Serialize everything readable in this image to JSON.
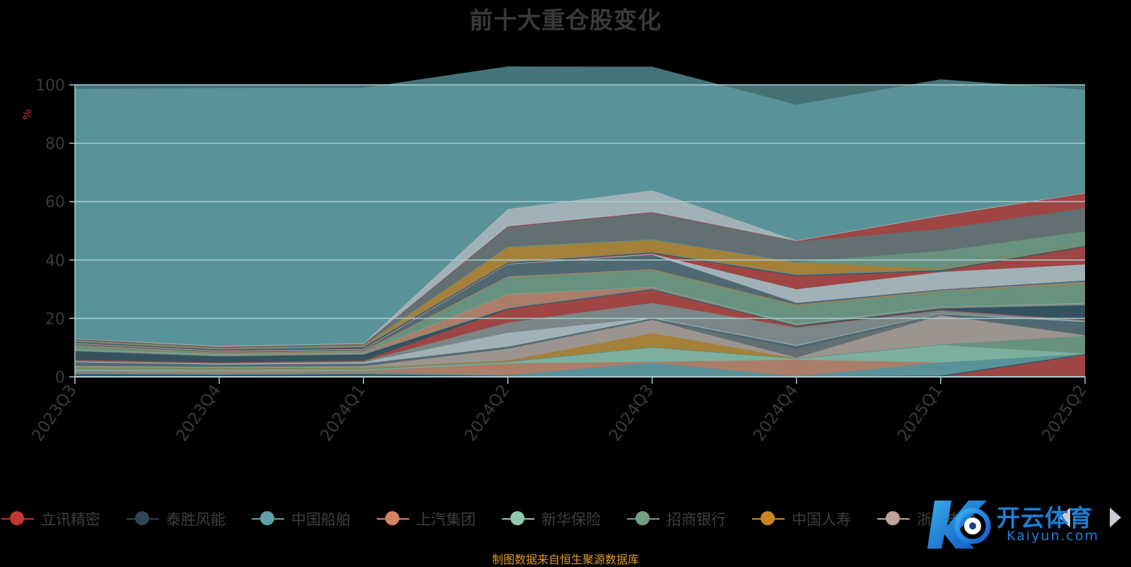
{
  "chart_data": {
    "type": "area",
    "title": "前十大重仓股变化",
    "ylabel": "%",
    "ylim": [
      0,
      100
    ],
    "y_ticks": [
      "0",
      "20",
      "40",
      "60",
      "80",
      "100"
    ],
    "stacked": true,
    "grid": true,
    "categories": [
      "2023Q3",
      "2023Q4",
      "2024Q1",
      "2024Q2",
      "2024Q3",
      "2024Q4",
      "2025Q1",
      "2025Q2"
    ],
    "series": [
      {
        "name": "立讯精密",
        "color": "#c23531",
        "values": [
          0.4,
          0.3,
          0.5,
          0,
          0,
          0,
          0,
          7.5
        ]
      },
      {
        "name": "泰胜风能",
        "color": "#2f4554",
        "values": [
          0.5,
          0.4,
          0.4,
          0.3,
          0.2,
          0.2,
          0.4,
          0.3
        ]
      },
      {
        "name": "中国船舶",
        "color": "#61a0a8",
        "values": [
          0.6,
          0.5,
          0.6,
          0.3,
          4.6,
          0,
          4.5,
          0
        ]
      },
      {
        "name": "上汽集团",
        "color": "#d48265",
        "values": [
          0.5,
          0.8,
          0.6,
          4.0,
          0.3,
          5.6,
          0,
          0
        ]
      },
      {
        "name": "新华保险",
        "color": "#91c7ae",
        "values": [
          0.5,
          0.4,
          0.4,
          0.4,
          4.9,
          0.3,
          6.0,
          0.2
        ]
      },
      {
        "name": "招商银行",
        "color": "#749f83",
        "values": [
          0.5,
          0.4,
          0.3,
          0.3,
          0.2,
          0.2,
          0.2,
          6.0
        ]
      },
      {
        "name": "中国人寿",
        "color": "#ca8622",
        "values": [
          0.3,
          0.3,
          0.3,
          0.3,
          4.7,
          0,
          0,
          0
        ]
      },
      {
        "name": "浙能电力",
        "color": "#bda29a",
        "values": [
          0.4,
          0.3,
          0.5,
          4.0,
          4.6,
          0.3,
          10.0,
          0.2
        ]
      },
      {
        "name": "",
        "color": "#6e7074",
        "values": [
          0.3,
          0.3,
          0.4,
          0.3,
          0.2,
          2.9,
          0.2,
          0.3
        ]
      },
      {
        "name": "",
        "color": "#546570",
        "values": [
          1.0,
          0.5,
          0.5,
          0.4,
          0.3,
          1.1,
          0.2,
          4.3
        ]
      },
      {
        "name": "",
        "color": "#c4ccd3",
        "values": [
          0.2,
          0.3,
          0.5,
          4.8,
          0.3,
          0.3,
          0.2,
          0.3
        ]
      },
      {
        "name": "",
        "color": "#8f8f8f",
        "values": [
          0.3,
          0.2,
          0.3,
          3.5,
          5.0,
          6.0,
          1.0,
          0.2
        ]
      },
      {
        "name": "",
        "color": "#c23531",
        "values": [
          0.3,
          0.3,
          0.3,
          4.5,
          4.5,
          0.3,
          0.2,
          0.2
        ]
      },
      {
        "name": "",
        "color": "#2f4554",
        "values": [
          3.0,
          2.0,
          2.0,
          0.3,
          0.2,
          0.3,
          0.5,
          5.0
        ]
      },
      {
        "name": "",
        "color": "#61a0a8",
        "values": [
          0.2,
          0.2,
          0.2,
          0.2,
          0.3,
          0.2,
          0.2,
          0.3
        ]
      },
      {
        "name": "",
        "color": "#d48265",
        "values": [
          0.2,
          0.2,
          0.3,
          4.6,
          0.3,
          0.2,
          0.3,
          0.2
        ]
      },
      {
        "name": "",
        "color": "#91c7ae",
        "values": [
          0.2,
          0.3,
          0.2,
          0.2,
          0.2,
          0.3,
          0.2,
          0.3
        ]
      },
      {
        "name": "",
        "color": "#749f83",
        "values": [
          1.0,
          0.2,
          0.2,
          5.5,
          5.6,
          6.0,
          5.0,
          6.5
        ]
      },
      {
        "name": "",
        "color": "#ca8622",
        "values": [
          0.2,
          0.2,
          0.2,
          0.2,
          0.2,
          0.2,
          0.2,
          0.3
        ]
      },
      {
        "name": "",
        "color": "#bda29a",
        "values": [
          0.2,
          0.2,
          0.2,
          0.2,
          0.2,
          0.2,
          0.2,
          0.3
        ]
      },
      {
        "name": "",
        "color": "#6e7074",
        "values": [
          0.3,
          0.2,
          0.2,
          0.2,
          0.2,
          0.3,
          0.2,
          0.3
        ]
      },
      {
        "name": "",
        "color": "#546570",
        "values": [
          0.2,
          0.2,
          0.2,
          4.0,
          4.8,
          0.4,
          0.2,
          0.3
        ]
      },
      {
        "name": "",
        "color": "#c4ccd3",
        "values": [
          0.2,
          0.2,
          0.2,
          0.2,
          0.3,
          4.7,
          6.0,
          5.5
        ]
      },
      {
        "name": "",
        "color": "#c23531",
        "values": [
          0.2,
          0.2,
          0.3,
          0.2,
          0.3,
          4.5,
          0.3,
          6.0
        ]
      },
      {
        "name": "",
        "color": "#2f4554",
        "values": [
          0.2,
          0.2,
          0.3,
          0.2,
          0.2,
          0.3,
          0.3,
          0.3
        ]
      },
      {
        "name": "",
        "color": "#61a0a8",
        "values": [
          0.2,
          0.2,
          0.3,
          0.2,
          0.2,
          0.3,
          0.3,
          0.3
        ]
      },
      {
        "name": "",
        "color": "#ca8622",
        "values": [
          0.2,
          0.2,
          0.2,
          5.0,
          4.0,
          4.0,
          0.3,
          0.2
        ]
      },
      {
        "name": "",
        "color": "#749f83",
        "values": [
          0.2,
          0.2,
          0.2,
          0.3,
          0.3,
          0.2,
          6.0,
          4.5
        ]
      },
      {
        "name": "",
        "color": "#6e7074",
        "values": [
          0.2,
          0.2,
          0.2,
          6.6,
          9.0,
          7.0,
          7.5,
          8.0
        ]
      },
      {
        "name": "",
        "color": "#c23531",
        "values": [
          0.2,
          0.2,
          0.2,
          0.3,
          0.3,
          0.2,
          4.5,
          5.0
        ]
      },
      {
        "name": "",
        "color": "#c4ccd3",
        "values": [
          0.2,
          0.3,
          0.3,
          6.0,
          7.5,
          0.2,
          0.3,
          0.2
        ]
      },
      {
        "name": "",
        "color": "#61a0a8",
        "values": [
          85.5,
          88.3,
          87.5,
          48.8,
          42.3,
          46.5,
          46.5,
          35.3
        ]
      }
    ]
  },
  "legend": {
    "items": [
      {
        "label": "立讯精密",
        "color": "#c23531"
      },
      {
        "label": "泰胜风能",
        "color": "#2f4554"
      },
      {
        "label": "中国船舶",
        "color": "#61a0a8"
      },
      {
        "label": "上汽集团",
        "color": "#d48265"
      },
      {
        "label": "新华保险",
        "color": "#91c7ae"
      },
      {
        "label": "招商银行",
        "color": "#749f83"
      },
      {
        "label": "中国人寿",
        "color": "#ca8622"
      },
      {
        "label": "浙能电力",
        "color": "#bda29a"
      }
    ],
    "next_icon": "triangle-right-icon",
    "prev_icon": "triangle-left-icon"
  },
  "footer": {
    "source_note": "制图数据来自恒生聚源数据库"
  },
  "watermark": {
    "text": "开云体育",
    "subtext": "Kaiyun.com"
  },
  "colors": {
    "plot_background": "#467173",
    "grid": "#a9cfd0",
    "axis_text": "#3a3a3a",
    "ylabel": "#c23531",
    "source_note": "#e29a27"
  }
}
